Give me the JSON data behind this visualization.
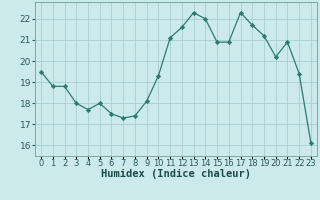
{
  "x": [
    0,
    1,
    2,
    3,
    4,
    5,
    6,
    7,
    8,
    9,
    10,
    11,
    12,
    13,
    14,
    15,
    16,
    17,
    18,
    19,
    20,
    21,
    22,
    23
  ],
  "y": [
    19.5,
    18.8,
    18.8,
    18.0,
    17.7,
    18.0,
    17.5,
    17.3,
    17.4,
    18.1,
    19.3,
    21.1,
    21.6,
    22.3,
    22.0,
    20.9,
    20.9,
    22.3,
    21.7,
    21.2,
    20.2,
    20.9,
    19.4,
    16.1
  ],
  "line_color": "#2a7d6e",
  "marker": "D",
  "marker_size": 2.2,
  "bg_color": "#cdeaea",
  "grid_color": "#aacece",
  "xlabel": "Humidex (Indice chaleur)",
  "ylim": [
    15.5,
    22.8
  ],
  "xlim": [
    -0.5,
    23.5
  ],
  "yticks": [
    16,
    17,
    18,
    19,
    20,
    21,
    22
  ],
  "xtick_labels": [
    "0",
    "1",
    "2",
    "3",
    "4",
    "5",
    "6",
    "7",
    "8",
    "9",
    "10",
    "11",
    "12",
    "13",
    "14",
    "15",
    "16",
    "17",
    "18",
    "19",
    "20",
    "21",
    "22",
    "23"
  ],
  "font_size": 6.5,
  "xlabel_fontsize": 7.5
}
